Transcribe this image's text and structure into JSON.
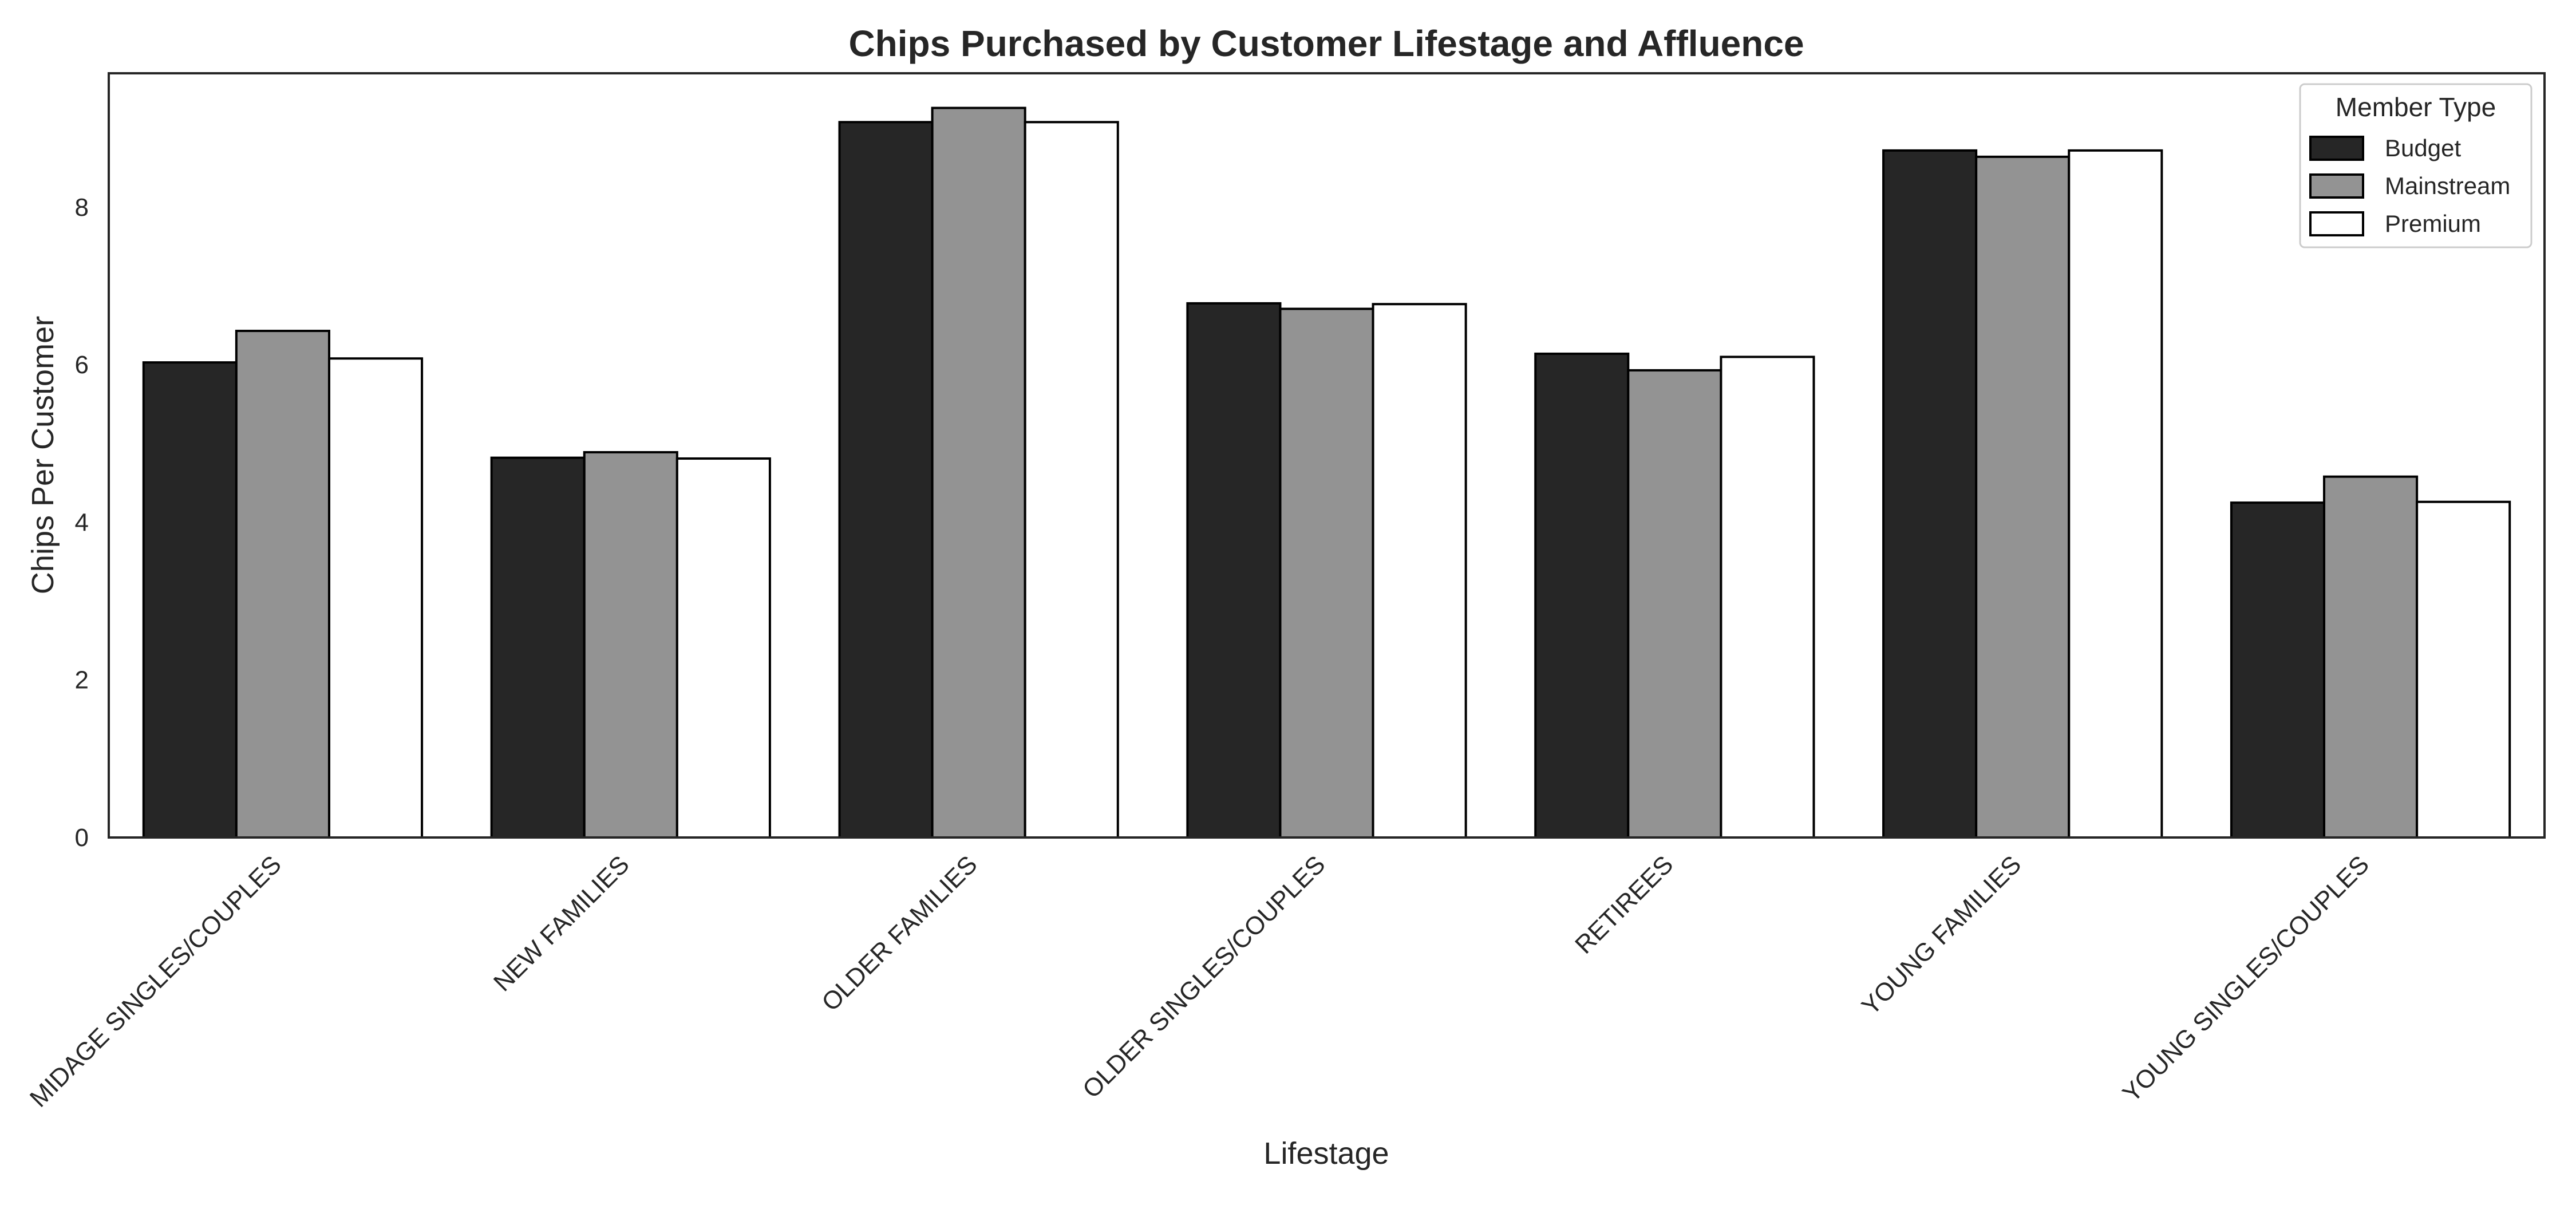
{
  "chart_data": {
    "type": "bar",
    "title": "Chips Purchased by Customer Lifestage and Affluence",
    "xlabel": "Lifestage",
    "ylabel": "Chips Per Customer",
    "categories": [
      "MIDAGE SINGLES/COUPLES",
      "NEW FAMILIES",
      "OLDER FAMILIES",
      "OLDER SINGLES/COUPLES",
      "RETIREES",
      "YOUNG FAMILIES",
      "YOUNG SINGLES/COUPLES"
    ],
    "series": [
      {
        "name": "Budget",
        "color": "#262626",
        "values": [
          6.03,
          4.82,
          9.08,
          6.78,
          6.14,
          8.72,
          4.25
        ]
      },
      {
        "name": "Mainstream",
        "color": "#939393",
        "values": [
          6.43,
          4.89,
          9.26,
          6.71,
          5.93,
          8.64,
          4.58
        ]
      },
      {
        "name": "Premium",
        "color": "#ffffff",
        "values": [
          6.08,
          4.81,
          9.08,
          6.77,
          6.1,
          8.72,
          4.26
        ]
      }
    ],
    "ylim": [
      0,
      9.7
    ],
    "yticks": [
      0,
      2,
      4,
      6,
      8
    ],
    "legend": {
      "title": "Member Type",
      "placement": "top-right"
    },
    "grid": false
  }
}
